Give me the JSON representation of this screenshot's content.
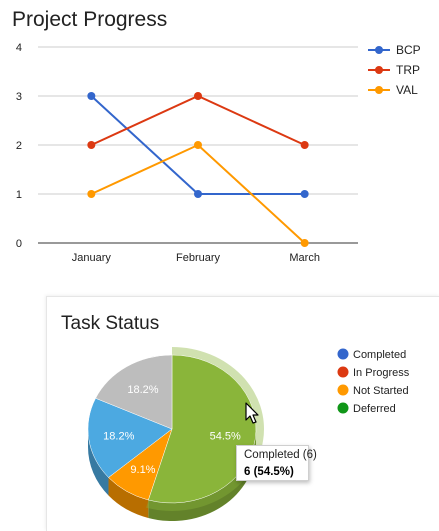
{
  "chart_data": [
    {
      "type": "line",
      "title": "Project Progress",
      "categories": [
        "January",
        "February",
        "March"
      ],
      "series": [
        {
          "name": "BCP",
          "values": [
            3,
            1,
            1
          ],
          "color": "#3366cc"
        },
        {
          "name": "TRP",
          "values": [
            2,
            3,
            2
          ],
          "color": "#dc3912"
        },
        {
          "name": "VAL",
          "values": [
            1,
            2,
            0
          ],
          "color": "#ff9900"
        }
      ],
      "y_ticks": [
        "0",
        "1",
        "2",
        "3",
        "4"
      ],
      "ylim": [
        0,
        4
      ],
      "grid": true,
      "legend_position": "right",
      "xlabel": "",
      "ylabel": ""
    },
    {
      "type": "pie",
      "title": "Task Status",
      "style": "3d",
      "slices": [
        {
          "label": "Completed",
          "percent_label": "54.5%",
          "value": 6,
          "color": "#8ab53a"
        },
        {
          "label": "In Progress",
          "percent_label": "",
          "value": 0,
          "color": "#dc3912"
        },
        {
          "label": "Not Started",
          "percent_label": "9.1%",
          "value": 1,
          "color": "#ff9900"
        },
        {
          "label": "Deferred",
          "percent_label": "",
          "value": 0,
          "color": "#109618"
        },
        {
          "label": "",
          "percent_label": "18.2%",
          "value": 2,
          "color": "#4ca9e1"
        },
        {
          "label": "",
          "percent_label": "18.2%",
          "value": 2,
          "color": "#bdbdbd"
        }
      ],
      "legend": [
        {
          "label": "Completed",
          "color": "#3366cc"
        },
        {
          "label": "In Progress",
          "color": "#dc3912"
        },
        {
          "label": "Not Started",
          "color": "#ff9900"
        },
        {
          "label": "Deferred",
          "color": "#109618"
        }
      ],
      "highlighted_slice": "Completed",
      "legend_position": "right"
    }
  ],
  "tooltip": {
    "name": "Completed (6)",
    "value": "6 (54.5%)"
  }
}
